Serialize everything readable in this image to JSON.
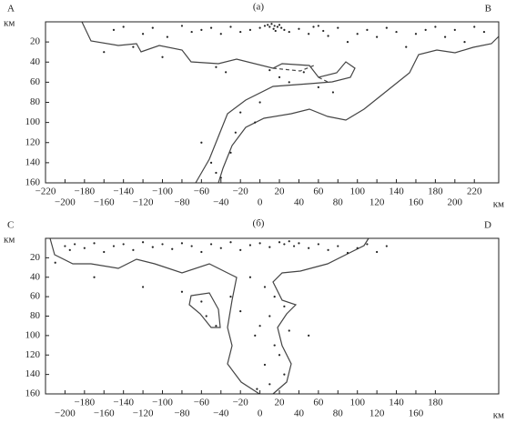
{
  "chart_data": [
    {
      "type": "scatter",
      "title": "(а)",
      "left_label": "A",
      "right_label": "B",
      "x_unit": "км",
      "y_unit": "км",
      "color": "#222222",
      "x": [
        -150,
        -140,
        -120,
        -110,
        -95,
        -80,
        -70,
        -60,
        -50,
        -40,
        -30,
        -20,
        -10,
        0,
        5,
        8,
        10,
        12,
        14,
        15,
        16,
        18,
        20,
        22,
        25,
        30,
        40,
        50,
        55,
        60,
        65,
        70,
        80,
        90,
        100,
        110,
        120,
        130,
        140,
        150,
        160,
        170,
        180,
        190,
        200,
        210,
        220,
        230,
        -160,
        -130,
        -100,
        -45,
        -35,
        10,
        20,
        30,
        45,
        60,
        75,
        -20,
        -5,
        -60,
        -50,
        -45,
        -30,
        -40,
        -25,
        0
      ],
      "values": [
        8,
        5,
        12,
        6,
        15,
        4,
        10,
        8,
        6,
        12,
        5,
        10,
        8,
        6,
        4,
        3,
        5,
        2,
        7,
        4,
        9,
        5,
        3,
        6,
        8,
        10,
        7,
        12,
        5,
        4,
        9,
        14,
        6,
        20,
        12,
        8,
        15,
        6,
        10,
        25,
        12,
        8,
        5,
        15,
        8,
        20,
        5,
        10,
        30,
        25,
        35,
        45,
        50,
        48,
        55,
        60,
        50,
        65,
        70,
        90,
        100,
        120,
        140,
        150,
        130,
        155,
        110,
        80
      ],
      "xlim": [
        -220,
        245
      ],
      "ylim": [
        0,
        160
      ],
      "xticks": [
        {
          "value": -220,
          "label": "−220"
        },
        {
          "value": -200,
          "label": "−200"
        },
        {
          "value": -180,
          "label": "−180"
        },
        {
          "value": -160,
          "label": "−160"
        },
        {
          "value": -140,
          "label": "−140"
        },
        {
          "value": -120,
          "label": "−120"
        },
        {
          "value": -100,
          "label": "−100"
        },
        {
          "value": -80,
          "label": "−80"
        },
        {
          "value": -60,
          "label": "−60"
        },
        {
          "value": -40,
          "label": "−40"
        },
        {
          "value": -20,
          "label": "−20"
        },
        0,
        20,
        40,
        60,
        80,
        100,
        120,
        140,
        160,
        180,
        200,
        220
      ],
      "yticks": [
        20,
        40,
        60,
        80,
        100,
        120,
        140,
        160
      ]
    },
    {
      "type": "scatter",
      "title": "(б)",
      "left_label": "C",
      "right_label": "D",
      "x_unit": "км",
      "y_unit": "км",
      "color": "#222222",
      "x": [
        -200,
        -195,
        -190,
        -180,
        -170,
        -160,
        -150,
        -140,
        -130,
        -120,
        -110,
        -100,
        -90,
        -80,
        -70,
        -60,
        -50,
        -40,
        -30,
        -20,
        -10,
        0,
        10,
        20,
        25,
        30,
        35,
        40,
        50,
        60,
        70,
        80,
        90,
        100,
        110,
        120,
        130,
        -210,
        -170,
        -120,
        -80,
        -60,
        -55,
        -45,
        -10,
        5,
        15,
        25,
        10,
        0,
        -5,
        15,
        20,
        5,
        25,
        10,
        -3,
        30,
        50,
        -30,
        -20
      ],
      "values": [
        8,
        12,
        6,
        10,
        5,
        14,
        8,
        6,
        12,
        4,
        9,
        6,
        11,
        5,
        8,
        14,
        6,
        10,
        4,
        12,
        7,
        5,
        9,
        4,
        6,
        3,
        8,
        5,
        10,
        6,
        12,
        8,
        15,
        10,
        6,
        14,
        8,
        25,
        40,
        50,
        55,
        65,
        80,
        90,
        40,
        50,
        60,
        70,
        80,
        90,
        100,
        110,
        120,
        130,
        140,
        150,
        155,
        95,
        100,
        60,
        75
      ],
      "xlim": [
        -220,
        245
      ],
      "ylim": [
        0,
        160
      ],
      "xticks": [
        {
          "value": -200,
          "label": "−200"
        },
        {
          "value": -180,
          "label": "−180"
        },
        {
          "value": -160,
          "label": "−160"
        },
        {
          "value": -140,
          "label": "−140"
        },
        {
          "value": -120,
          "label": "−120"
        },
        {
          "value": -100,
          "label": "−100"
        },
        {
          "value": -80,
          "label": "−80"
        },
        {
          "value": -60,
          "label": "−60"
        },
        {
          "value": -40,
          "label": "−40"
        },
        {
          "value": -20,
          "label": "−20"
        },
        0,
        20,
        40,
        60,
        80,
        100,
        120,
        140,
        160,
        180
      ],
      "yticks": [
        20,
        40,
        60,
        80,
        100,
        120,
        140,
        160
      ]
    }
  ]
}
